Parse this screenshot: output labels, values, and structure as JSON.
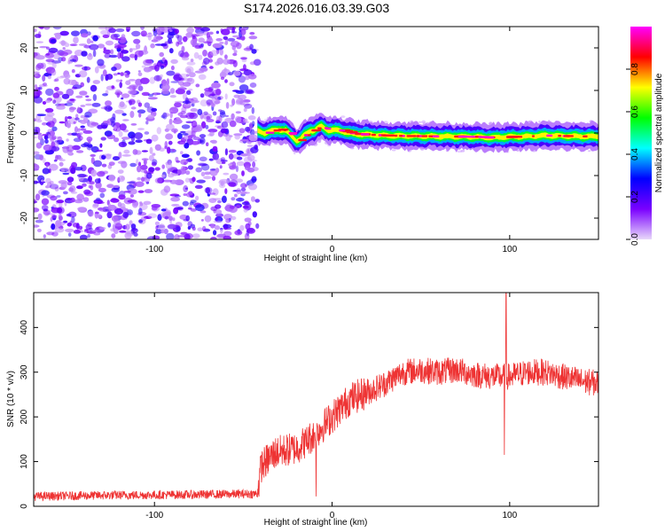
{
  "title": "S174.2026.016.03.39.G03",
  "chart_data": [
    {
      "type": "heatmap",
      "name": "spectrogram",
      "xlabel": "Height of straight line (km)",
      "ylabel": "Frequency (Hz)",
      "xlim": [
        -168,
        150
      ],
      "ylim": [
        -25,
        25
      ],
      "xticks": [
        -100,
        0,
        100
      ],
      "yticks": [
        -20,
        -10,
        0,
        10,
        20
      ],
      "xtick_labels": [
        "-100",
        "0",
        "100"
      ],
      "ytick_labels": [
        "-20",
        "-10",
        "0",
        "10",
        "20"
      ],
      "noise_region_x": [
        -168,
        -42
      ],
      "signal_region_x": [
        -42,
        150
      ],
      "signal_frequency_trace": {
        "x": [
          -42,
          -38,
          -34,
          -30,
          -26,
          -22,
          -20,
          -18,
          -16,
          -14,
          -12,
          -10,
          -8,
          -6,
          -4,
          -2,
          0,
          4,
          8,
          12,
          20,
          30,
          40,
          60,
          80,
          90,
          100,
          110,
          120,
          130,
          140,
          150
        ],
        "y": [
          0.5,
          0.0,
          0.5,
          0.8,
          0.6,
          -1.0,
          -1.8,
          -1.5,
          -0.6,
          0.0,
          0.6,
          0.6,
          1.2,
          1.6,
          1.1,
          0.6,
          0.7,
          0.6,
          0.2,
          -0.2,
          -0.4,
          -0.6,
          -0.7,
          -0.8,
          -0.9,
          -1.1,
          -0.9,
          -0.8,
          -0.6,
          -0.7,
          -0.8,
          -0.8
        ]
      },
      "colorbar": {
        "label": "Normalized spectral amplitude",
        "range": [
          0,
          1
        ],
        "ticks": [
          0.0,
          0.2,
          0.4,
          0.6,
          0.8
        ],
        "tick_labels": [
          "0.0",
          "0.2",
          "0.4",
          "0.6",
          "0.8"
        ],
        "colors": [
          "#e8d8fa",
          "#7a00ff",
          "#0000ff",
          "#00ffff",
          "#00ff00",
          "#ffff00",
          "#ff0000",
          "#ff00ff"
        ]
      }
    },
    {
      "type": "line",
      "name": "snr",
      "xlabel": "Height of straight line (km)",
      "ylabel": "SNR (10 * v/v)",
      "xlim": [
        -168,
        150
      ],
      "ylim": [
        0,
        478
      ],
      "xticks": [
        -100,
        0,
        100
      ],
      "yticks": [
        0,
        100,
        200,
        300,
        400
      ],
      "xtick_labels": [
        "-100",
        "0",
        "100"
      ],
      "ytick_labels": [
        "0",
        "100",
        "200",
        "300",
        "400"
      ],
      "line_color": "#ee3333",
      "trend": {
        "x": [
          -168,
          -120,
          -80,
          -42,
          -40,
          -32,
          -20,
          -10,
          0,
          10,
          20,
          30,
          40,
          50,
          60,
          70,
          80,
          90,
          100,
          110,
          120,
          130,
          140,
          150
        ],
        "y": [
          22,
          25,
          26,
          28,
          90,
          120,
          130,
          160,
          200,
          240,
          255,
          275,
          300,
          305,
          300,
          305,
          295,
          290,
          290,
          300,
          300,
          290,
          280,
          275
        ]
      },
      "spikes": [
        {
          "x": 98,
          "y": 478
        },
        {
          "x": 97,
          "y": 115
        },
        {
          "x": -9,
          "y": 22
        },
        {
          "x": -15,
          "y": 170
        }
      ]
    }
  ]
}
